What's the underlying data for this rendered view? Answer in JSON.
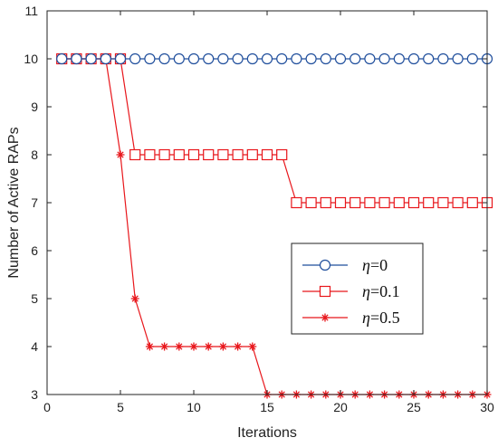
{
  "chart_data": {
    "type": "line",
    "xlabel": "Iterations",
    "ylabel": "Number of Active RAPs",
    "xlim": [
      0,
      30
    ],
    "ylim": [
      3,
      11
    ],
    "xticks": [
      0,
      5,
      10,
      15,
      20,
      25,
      30
    ],
    "yticks": [
      3,
      4,
      5,
      6,
      7,
      8,
      9,
      10,
      11
    ],
    "grid": false,
    "legend_position": "center-right",
    "x": [
      1,
      2,
      3,
      4,
      5,
      6,
      7,
      8,
      9,
      10,
      11,
      12,
      13,
      14,
      15,
      16,
      17,
      18,
      19,
      20,
      21,
      22,
      23,
      24,
      25,
      26,
      27,
      28,
      29,
      30
    ],
    "series": [
      {
        "name": "η=0",
        "legend_symbol": "η",
        "legend_value": "=0",
        "color": "#1f4e9c",
        "marker": "circle",
        "values": [
          10,
          10,
          10,
          10,
          10,
          10,
          10,
          10,
          10,
          10,
          10,
          10,
          10,
          10,
          10,
          10,
          10,
          10,
          10,
          10,
          10,
          10,
          10,
          10,
          10,
          10,
          10,
          10,
          10,
          10
        ]
      },
      {
        "name": "η=0.1",
        "legend_symbol": "η",
        "legend_value": "=0.1",
        "color": "#e8161b",
        "marker": "square",
        "values": [
          10,
          10,
          10,
          10,
          10,
          8,
          8,
          8,
          8,
          8,
          8,
          8,
          8,
          8,
          8,
          8,
          7,
          7,
          7,
          7,
          7,
          7,
          7,
          7,
          7,
          7,
          7,
          7,
          7,
          7
        ]
      },
      {
        "name": "η=0.5",
        "legend_symbol": "η",
        "legend_value": "=0.5",
        "color": "#e8161b",
        "marker": "star",
        "values": [
          10,
          10,
          10,
          10,
          8,
          5,
          4,
          4,
          4,
          4,
          4,
          4,
          4,
          4,
          3,
          3,
          3,
          3,
          3,
          3,
          3,
          3,
          3,
          3,
          3,
          3,
          3,
          3,
          3,
          3
        ]
      }
    ]
  }
}
